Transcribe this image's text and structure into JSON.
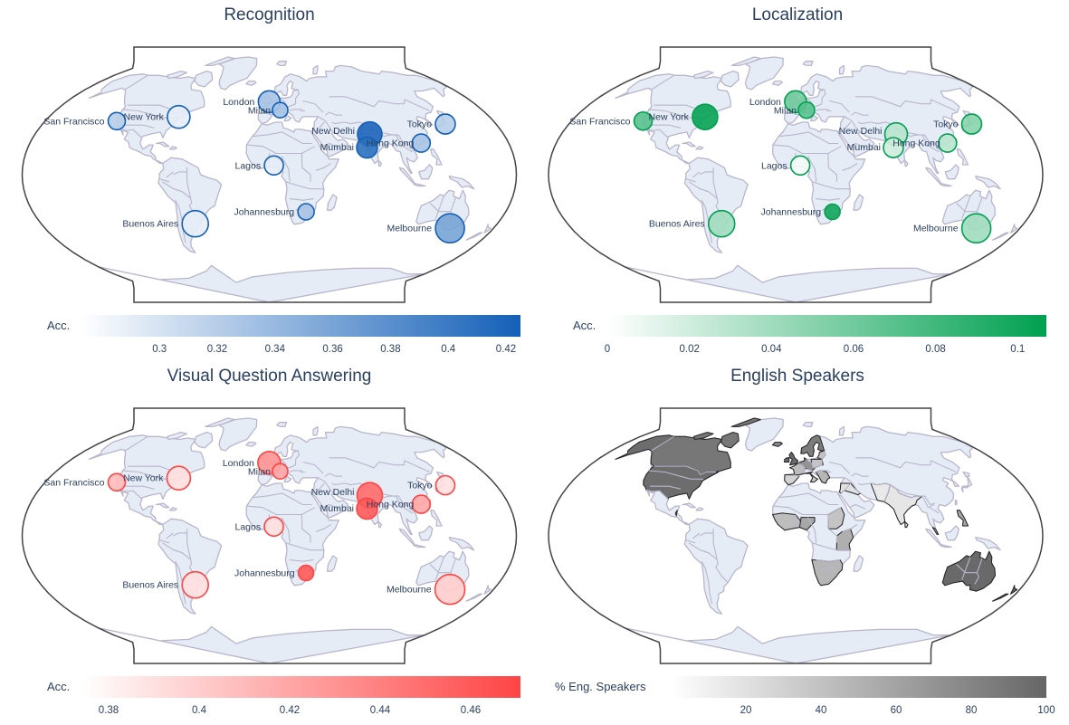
{
  "panels": [
    {
      "id": "recognition",
      "title": "Recognition",
      "kind": "bubble",
      "colorbar": {
        "title": "Acc.",
        "min": 0.273,
        "max": 0.425,
        "ticks": [
          0.3,
          0.32,
          0.34,
          0.36,
          0.38,
          0.4,
          0.42
        ],
        "tick_labels": [
          "0.3",
          "0.32",
          "0.34",
          "0.36",
          "0.38",
          "0.4",
          "0.42"
        ],
        "colors": [
          "#ffffff",
          "#1460b8"
        ]
      },
      "cities": [
        {
          "name": "San Francisco",
          "lon": -122.4,
          "lat": 37.8,
          "value": 0.32,
          "size": 1.0
        },
        {
          "name": "New York",
          "lon": -74.0,
          "lat": 40.7,
          "value": 0.29,
          "size": 1.6
        },
        {
          "name": "London",
          "lon": -0.1,
          "lat": 51.5,
          "value": 0.33,
          "size": 1.5
        },
        {
          "name": "Milan",
          "lon": 9.2,
          "lat": 45.5,
          "value": 0.33,
          "size": 0.8
        },
        {
          "name": "New Delhi",
          "lon": 77.2,
          "lat": 28.6,
          "value": 0.42,
          "size": 1.8
        },
        {
          "name": "Mumbai",
          "lon": 72.9,
          "lat": 19.1,
          "value": 0.41,
          "size": 1.4
        },
        {
          "name": "Hong Kong",
          "lon": 114.2,
          "lat": 22.3,
          "value": 0.33,
          "size": 1.1
        },
        {
          "name": "Tokyo",
          "lon": 139.7,
          "lat": 35.7,
          "value": 0.32,
          "size": 1.3
        },
        {
          "name": "Lagos",
          "lon": 3.4,
          "lat": 6.5,
          "value": 0.29,
          "size": 1.2
        },
        {
          "name": "Johannesburg",
          "lon": 28.0,
          "lat": -26.2,
          "value": 0.33,
          "size": 0.9
        },
        {
          "name": "Buenos Aires",
          "lon": -58.4,
          "lat": -34.6,
          "value": 0.29,
          "size": 2.0
        },
        {
          "name": "Melbourne",
          "lon": 145.0,
          "lat": -37.8,
          "value": 0.36,
          "size": 2.3
        }
      ]
    },
    {
      "id": "localization",
      "title": "Localization",
      "kind": "bubble",
      "colorbar": {
        "title": "Acc.",
        "min": 0,
        "max": 0.107,
        "ticks": [
          0,
          0.02,
          0.04,
          0.06,
          0.08,
          0.1
        ],
        "tick_labels": [
          "0",
          "0.02",
          "0.04",
          "0.06",
          "0.08",
          "0.1"
        ],
        "colors": [
          "#ffffff",
          "#00a050"
        ]
      },
      "cities": [
        {
          "name": "San Francisco",
          "lon": -122.4,
          "lat": 37.8,
          "value": 0.07,
          "size": 1.1
        },
        {
          "name": "New York",
          "lon": -74.0,
          "lat": 40.7,
          "value": 0.105,
          "size": 1.9
        },
        {
          "name": "London",
          "lon": -0.1,
          "lat": 51.5,
          "value": 0.06,
          "size": 1.5
        },
        {
          "name": "Milan",
          "lon": 9.2,
          "lat": 45.5,
          "value": 0.07,
          "size": 0.9
        },
        {
          "name": "New Delhi",
          "lon": 77.2,
          "lat": 28.6,
          "value": 0.03,
          "size": 1.6
        },
        {
          "name": "Mumbai",
          "lon": 72.9,
          "lat": 19.1,
          "value": 0.02,
          "size": 1.3
        },
        {
          "name": "Hong Kong",
          "lon": 114.2,
          "lat": 22.3,
          "value": 0.03,
          "size": 1.1
        },
        {
          "name": "Tokyo",
          "lon": 139.7,
          "lat": 35.7,
          "value": 0.05,
          "size": 1.3
        },
        {
          "name": "Lagos",
          "lon": 3.4,
          "lat": 6.5,
          "value": 0.005,
          "size": 1.2
        },
        {
          "name": "Johannesburg",
          "lon": 28.0,
          "lat": -26.2,
          "value": 0.1,
          "size": 0.8
        },
        {
          "name": "Buenos Aires",
          "lon": -58.4,
          "lat": -34.6,
          "value": 0.04,
          "size": 2.0
        },
        {
          "name": "Melbourne",
          "lon": 145.0,
          "lat": -37.8,
          "value": 0.04,
          "size": 2.3
        }
      ]
    },
    {
      "id": "vqa",
      "title": "Visual Question Answering",
      "kind": "bubble",
      "colorbar": {
        "title": "Acc.",
        "min": 0.374,
        "max": 0.471,
        "ticks": [
          0.38,
          0.4,
          0.42,
          0.44,
          0.46
        ],
        "tick_labels": [
          "0.38",
          "0.4",
          "0.42",
          "0.44",
          "0.46"
        ],
        "colors": [
          "#ffffff",
          "#ff4444"
        ]
      },
      "cities": [
        {
          "name": "San Francisco",
          "lon": -122.4,
          "lat": 37.8,
          "value": 0.41,
          "size": 1.0
        },
        {
          "name": "New York",
          "lon": -74.0,
          "lat": 40.7,
          "value": 0.39,
          "size": 1.7
        },
        {
          "name": "London",
          "lon": -0.1,
          "lat": 51.5,
          "value": 0.43,
          "size": 1.6
        },
        {
          "name": "Milan",
          "lon": 9.2,
          "lat": 45.5,
          "value": 0.42,
          "size": 0.8
        },
        {
          "name": "New Delhi",
          "lon": 77.2,
          "lat": 28.6,
          "value": 0.45,
          "size": 1.9
        },
        {
          "name": "Mumbai",
          "lon": 72.9,
          "lat": 19.1,
          "value": 0.46,
          "size": 1.4
        },
        {
          "name": "Hong Kong",
          "lon": 114.2,
          "lat": 22.3,
          "value": 0.42,
          "size": 1.1
        },
        {
          "name": "Tokyo",
          "lon": 139.7,
          "lat": 35.7,
          "value": 0.39,
          "size": 1.2
        },
        {
          "name": "Lagos",
          "lon": 3.4,
          "lat": 6.5,
          "value": 0.39,
          "size": 1.2
        },
        {
          "name": "Johannesburg",
          "lon": 28.0,
          "lat": -26.2,
          "value": 0.46,
          "size": 0.8
        },
        {
          "name": "Buenos Aires",
          "lon": -58.4,
          "lat": -34.6,
          "value": 0.39,
          "size": 2.0
        },
        {
          "name": "Melbourne",
          "lon": 145.0,
          "lat": -37.8,
          "value": 0.4,
          "size": 2.4
        }
      ]
    },
    {
      "id": "english",
      "title": "English Speakers",
      "kind": "choropleth",
      "colorbar": {
        "title": "% Eng. Speakers",
        "min": 0,
        "max": 100,
        "ticks": [
          20,
          40,
          60,
          80,
          100
        ],
        "tick_labels": [
          "20",
          "40",
          "60",
          "80",
          "100"
        ],
        "colors": [
          "#ffffff",
          "#666666"
        ]
      }
    }
  ],
  "chart_data": [
    {
      "type": "scatter",
      "title": "Recognition",
      "legend_title": "Acc.",
      "colorbar_range": [
        0.273,
        0.425
      ],
      "points": [
        {
          "city": "San Francisco",
          "value": 0.32
        },
        {
          "city": "New York",
          "value": 0.29
        },
        {
          "city": "London",
          "value": 0.33
        },
        {
          "city": "Milan",
          "value": 0.33
        },
        {
          "city": "New Delhi",
          "value": 0.42
        },
        {
          "city": "Mumbai",
          "value": 0.41
        },
        {
          "city": "Hong Kong",
          "value": 0.33
        },
        {
          "city": "Tokyo",
          "value": 0.32
        },
        {
          "city": "Lagos",
          "value": 0.29
        },
        {
          "city": "Johannesburg",
          "value": 0.33
        },
        {
          "city": "Buenos Aires",
          "value": 0.29
        },
        {
          "city": "Melbourne",
          "value": 0.36
        }
      ]
    },
    {
      "type": "scatter",
      "title": "Localization",
      "legend_title": "Acc.",
      "colorbar_range": [
        0,
        0.107
      ],
      "points": [
        {
          "city": "San Francisco",
          "value": 0.07
        },
        {
          "city": "New York",
          "value": 0.105
        },
        {
          "city": "London",
          "value": 0.06
        },
        {
          "city": "Milan",
          "value": 0.07
        },
        {
          "city": "New Delhi",
          "value": 0.03
        },
        {
          "city": "Mumbai",
          "value": 0.02
        },
        {
          "city": "Hong Kong",
          "value": 0.03
        },
        {
          "city": "Tokyo",
          "value": 0.05
        },
        {
          "city": "Lagos",
          "value": 0.005
        },
        {
          "city": "Johannesburg",
          "value": 0.1
        },
        {
          "city": "Buenos Aires",
          "value": 0.04
        },
        {
          "city": "Melbourne",
          "value": 0.04
        }
      ]
    },
    {
      "type": "scatter",
      "title": "Visual Question Answering",
      "legend_title": "Acc.",
      "colorbar_range": [
        0.374,
        0.471
      ],
      "points": [
        {
          "city": "San Francisco",
          "value": 0.41
        },
        {
          "city": "New York",
          "value": 0.39
        },
        {
          "city": "London",
          "value": 0.43
        },
        {
          "city": "Milan",
          "value": 0.42
        },
        {
          "city": "New Delhi",
          "value": 0.45
        },
        {
          "city": "Mumbai",
          "value": 0.46
        },
        {
          "city": "Hong Kong",
          "value": 0.42
        },
        {
          "city": "Tokyo",
          "value": 0.39
        },
        {
          "city": "Lagos",
          "value": 0.39
        },
        {
          "city": "Johannesburg",
          "value": 0.46
        },
        {
          "city": "Buenos Aires",
          "value": 0.39
        },
        {
          "city": "Melbourne",
          "value": 0.4
        }
      ]
    },
    {
      "type": "heatmap",
      "title": "English Speakers",
      "legend_title": "% Eng. Speakers",
      "colorbar_range": [
        0,
        100
      ],
      "regions": [
        {
          "region": "Canada",
          "value": 86
        },
        {
          "region": "United States",
          "value": 95
        },
        {
          "region": "Australia",
          "value": 98
        },
        {
          "region": "United Kingdom",
          "value": 98
        },
        {
          "region": "Ireland",
          "value": 98
        },
        {
          "region": "Scandinavia",
          "value": 85
        },
        {
          "region": "Western Europe",
          "value": 60
        },
        {
          "region": "Eastern Europe",
          "value": 20
        },
        {
          "region": "Russia",
          "value": 5
        },
        {
          "region": "West Africa",
          "value": 50
        },
        {
          "region": "Southern Africa",
          "value": 40
        },
        {
          "region": "India",
          "value": 12
        },
        {
          "region": "South America",
          "value": 5
        },
        {
          "region": "China",
          "value": 2
        }
      ]
    }
  ]
}
